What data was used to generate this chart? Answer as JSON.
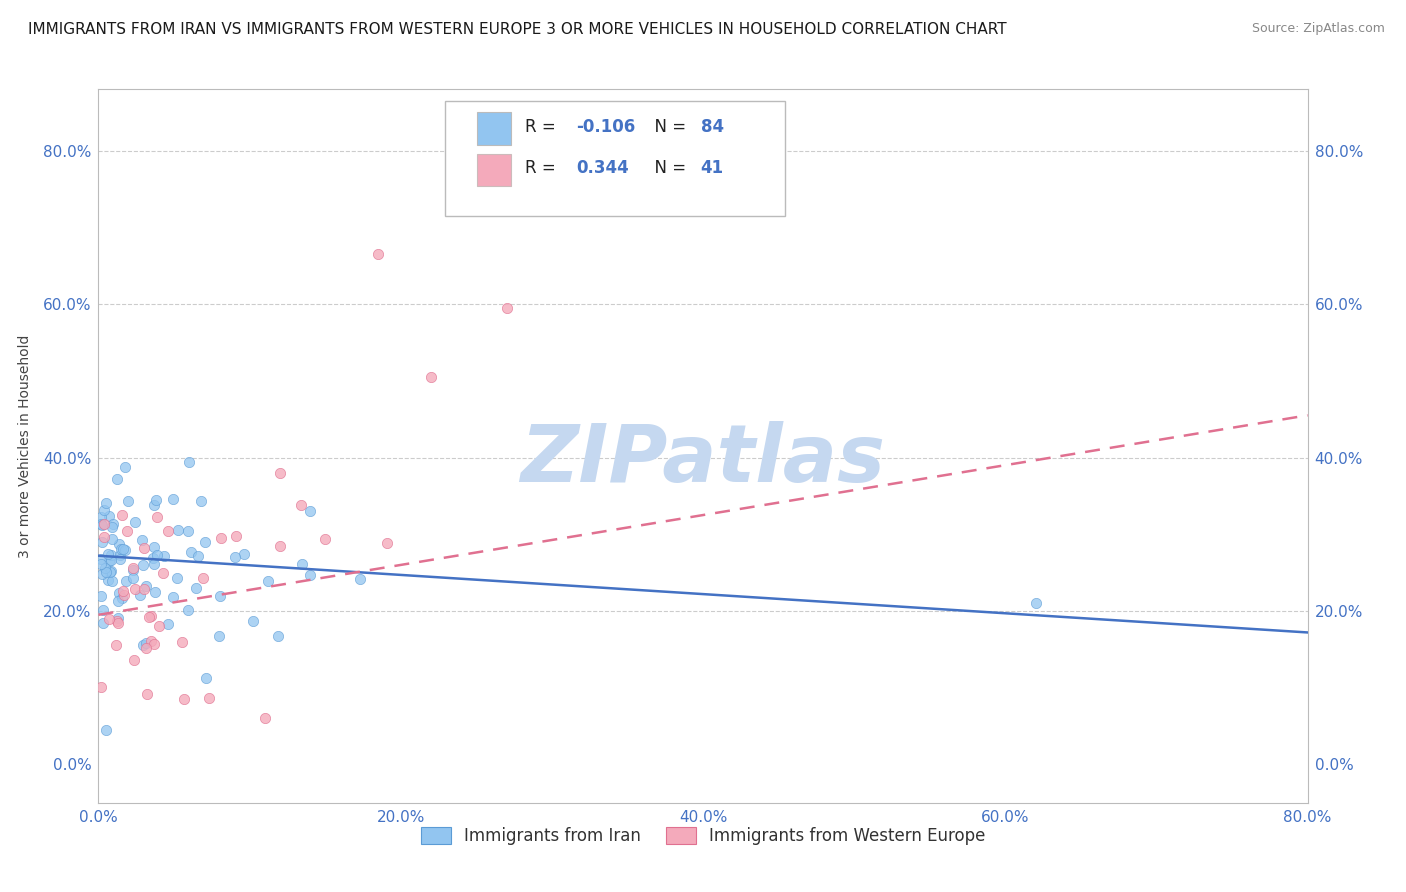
{
  "title": "IMMIGRANTS FROM IRAN VS IMMIGRANTS FROM WESTERN EUROPE 3 OR MORE VEHICLES IN HOUSEHOLD CORRELATION CHART",
  "source": "Source: ZipAtlas.com",
  "ylabel": "3 or more Vehicles in Household",
  "xlim": [
    0.0,
    0.8
  ],
  "ylim": [
    -0.05,
    0.88
  ],
  "xticks": [
    0.0,
    0.2,
    0.4,
    0.6,
    0.8
  ],
  "yticks": [
    0.0,
    0.2,
    0.4,
    0.6,
    0.8
  ],
  "xtick_labels": [
    "0.0%",
    "20.0%",
    "40.0%",
    "60.0%",
    "80.0%"
  ],
  "ytick_labels": [
    "0.0%",
    "20.0%",
    "40.0%",
    "60.0%",
    "80.0%"
  ],
  "series_iran": {
    "label": "Immigrants from Iran",
    "color": "#92C5F0",
    "edge_color": "#5B9BD5",
    "R": "-0.106",
    "N": "84",
    "trend_x": [
      0.0,
      0.8
    ],
    "trend_y": [
      0.272,
      0.172
    ]
  },
  "series_europe": {
    "label": "Immigrants from Western Europe",
    "color": "#F4AABB",
    "edge_color": "#E07090",
    "R": "0.344",
    "N": "41",
    "trend_x": [
      0.0,
      0.8
    ],
    "trend_y": [
      0.195,
      0.455
    ]
  },
  "watermark": "ZIPatlas",
  "watermark_color": "#C5D8F0",
  "blue_color": "#4472C4",
  "title_fontsize": 11,
  "axis_label_fontsize": 10,
  "tick_fontsize": 11,
  "legend_fontsize": 12
}
